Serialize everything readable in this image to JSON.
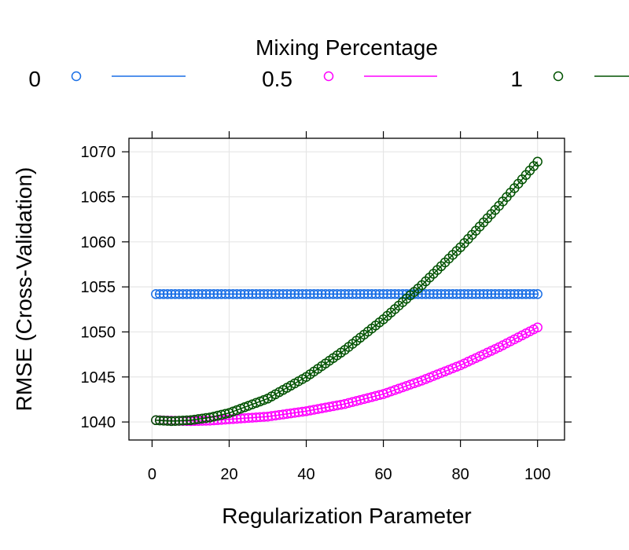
{
  "chart_data": {
    "type": "line",
    "title": "",
    "legend": {
      "title": "Mixing Percentage",
      "placement": "top",
      "entries": [
        {
          "label": "0",
          "color": "#1a6fe6"
        },
        {
          "label": "0.5",
          "color": "#ff00ff"
        },
        {
          "label": "1",
          "color": "#005200"
        }
      ]
    },
    "xlabel": "Regularization Parameter",
    "ylabel": "RMSE (Cross-Validation)",
    "xlim": [
      -6,
      107
    ],
    "ylim": [
      1038,
      1071.5
    ],
    "xticks": [
      "0",
      "20",
      "40",
      "60",
      "80",
      "100"
    ],
    "yticks": [
      "1040",
      "1045",
      "1050",
      "1055",
      "1060",
      "1065",
      "1070"
    ],
    "grid": true,
    "series": [
      {
        "name": "0",
        "color": "#1a6fe6",
        "x": [
          1,
          10,
          20,
          30,
          40,
          50,
          60,
          70,
          80,
          90,
          100
        ],
        "y": [
          1054.2,
          1054.2,
          1054.2,
          1054.2,
          1054.2,
          1054.2,
          1054.2,
          1054.2,
          1054.2,
          1054.2,
          1054.2
        ]
      },
      {
        "name": "0.5",
        "color": "#ff00ff",
        "x": [
          1,
          5,
          10,
          15,
          20,
          30,
          40,
          50,
          60,
          70,
          80,
          90,
          100
        ],
        "y": [
          1040.2,
          1040.15,
          1040.1,
          1040.15,
          1040.3,
          1040.6,
          1041.2,
          1042.0,
          1043.1,
          1044.6,
          1046.3,
          1048.3,
          1050.5
        ]
      },
      {
        "name": "1",
        "color": "#005200",
        "x": [
          1,
          5,
          10,
          15,
          20,
          30,
          40,
          50,
          60,
          70,
          80,
          90,
          100
        ],
        "y": [
          1040.2,
          1040.1,
          1040.2,
          1040.5,
          1041.0,
          1042.6,
          1045.0,
          1048.0,
          1051.4,
          1055.2,
          1059.4,
          1064.0,
          1068.9
        ]
      }
    ]
  }
}
